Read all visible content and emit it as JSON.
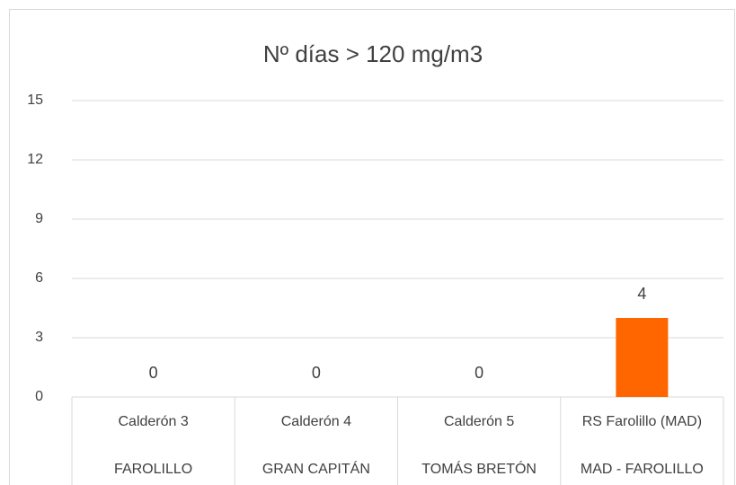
{
  "chart_data": {
    "type": "bar",
    "title": "Nº días > 120 mg/m3",
    "categories": [
      [
        "Calderón 3",
        "FAROLILLO"
      ],
      [
        "Calderón 4",
        "GRAN CAPITÁN"
      ],
      [
        "Calderón 5",
        "TOMÁS BRETÓN"
      ],
      [
        "RS Farolillo (MAD)",
        "MAD - FAROLILLO"
      ]
    ],
    "values": [
      0,
      0,
      0,
      4
    ],
    "color": "#ff6600",
    "ylim": [
      0,
      15
    ],
    "yticks": [
      0,
      3,
      6,
      9,
      12,
      15
    ],
    "grid": true
  }
}
